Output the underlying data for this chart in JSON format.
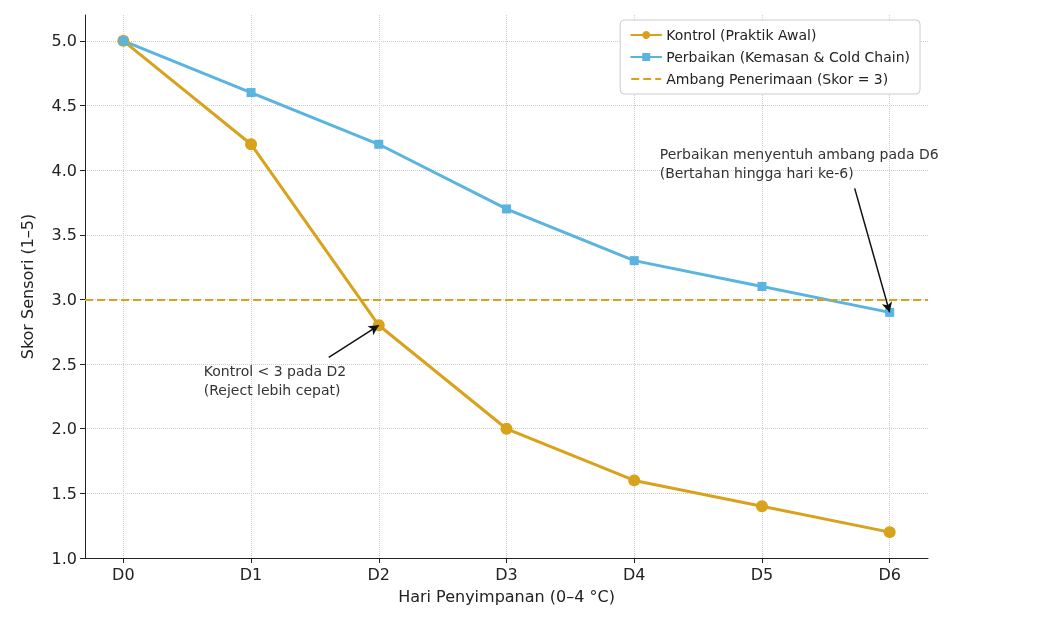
{
  "chart_data": {
    "type": "line",
    "xlabel": "Hari Penyimpanan (0–4 °C)",
    "ylabel": "Skor Sensori (1–5)",
    "categories": [
      "D0",
      "D1",
      "D2",
      "D3",
      "D4",
      "D5",
      "D6"
    ],
    "series": [
      {
        "name": "Kontrol (Praktik Awal)",
        "color": "#d9a21b",
        "marker": "circle",
        "values": [
          5.0,
          4.2,
          2.8,
          2.0,
          1.6,
          1.4,
          1.2
        ]
      },
      {
        "name": "Perbaikan (Kemasan & Cold Chain)",
        "color": "#5ab4e0",
        "marker": "square",
        "values": [
          5.0,
          4.6,
          4.2,
          3.7,
          3.3,
          3.1,
          2.9
        ]
      }
    ],
    "ylim": [
      1.0,
      5.2
    ],
    "yticks": [
      {
        "value": 1.0,
        "label": "1.0"
      },
      {
        "value": 1.5,
        "label": "1.5"
      },
      {
        "value": 2.0,
        "label": "2.0"
      },
      {
        "value": 2.5,
        "label": "2.5"
      },
      {
        "value": 3.0,
        "label": "3.0"
      },
      {
        "value": 3.5,
        "label": "3.5"
      },
      {
        "value": 4.0,
        "label": "4.0"
      },
      {
        "value": 4.5,
        "label": "4.5"
      },
      {
        "value": 5.0,
        "label": "5.0"
      }
    ],
    "ref_lines": [
      {
        "axis": "y",
        "value": 3,
        "label": "Ambang Penerimaan (Skor = 3)",
        "color": "#d9a21b",
        "line_style": "dashed"
      }
    ],
    "annotations": [
      {
        "text": "Kontrol < 3 pada D2\n(Reject lebih cepat)",
        "x": "D2",
        "y": 2.8
      },
      {
        "text": "Perbaikan menyentuh ambang pada D6\n(Bertahan hingga hari ke-6)",
        "x": "D6",
        "y": 2.9
      }
    ],
    "grid": true,
    "legend": "top right",
    "line_style": "solid"
  }
}
